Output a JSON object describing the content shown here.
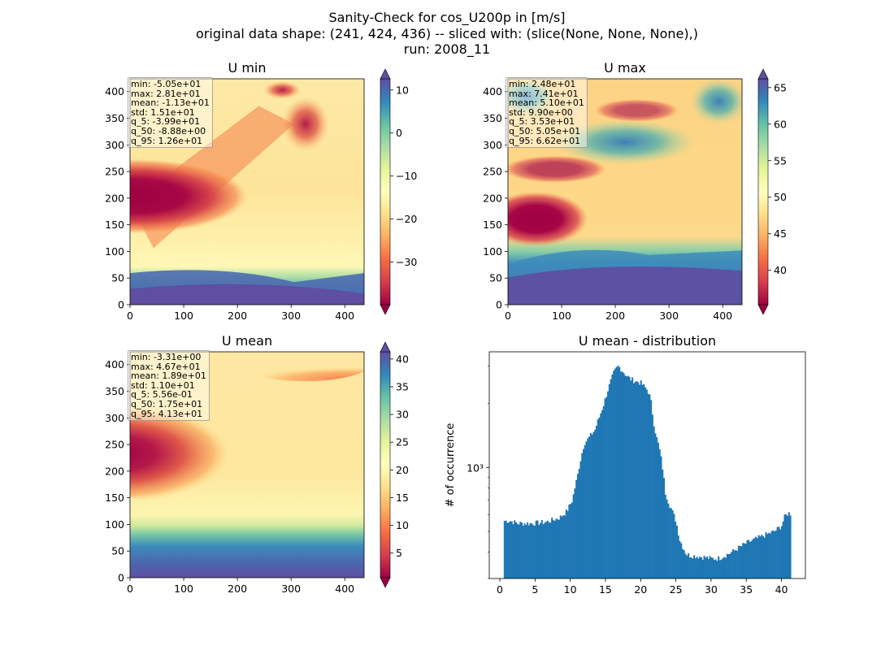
{
  "figure": {
    "title_lines": [
      "Sanity-Check for cos_U200p in [m/s]",
      "original data shape: (241, 424, 436) -- sliced with: (slice(None, None, None),)",
      "run: 2008_11"
    ]
  },
  "chart_data": [
    {
      "type": "heatmap",
      "title": "U min",
      "colormap": "Spectral",
      "x_ticks": [
        0,
        100,
        200,
        300,
        400
      ],
      "y_ticks": [
        0,
        50,
        100,
        150,
        200,
        250,
        300,
        350,
        400
      ],
      "xlim": [
        0,
        436
      ],
      "ylim": [
        0,
        424
      ],
      "colorbar_ticks": [
        10,
        0,
        -10,
        -20,
        -30
      ],
      "colorbar_labels": [
        "10",
        "0",
        "−10",
        "−20",
        "−30"
      ],
      "clim": [
        -39.9,
        12.6
      ],
      "stats": [
        "min: -5.05e+01",
        "max: 2.81e+01",
        "mean: -1.13e+01",
        "std: 1.51e+01",
        "q_5: -3.99e+01",
        "q_50: -8.88e+00",
        "q_95: 1.26e+01"
      ]
    },
    {
      "type": "heatmap",
      "title": "U max",
      "colormap": "Spectral",
      "x_ticks": [
        0,
        100,
        200,
        300,
        400
      ],
      "y_ticks": [
        0,
        50,
        100,
        150,
        200,
        250,
        300,
        350,
        400
      ],
      "xlim": [
        0,
        436
      ],
      "ylim": [
        0,
        424
      ],
      "colorbar_ticks": [
        65,
        60,
        55,
        50,
        45,
        40
      ],
      "colorbar_labels": [
        "65",
        "60",
        "55",
        "50",
        "45",
        "40"
      ],
      "clim": [
        35.3,
        66.2
      ],
      "stats": [
        "min: 2.48e+01",
        "max: 7.41e+01",
        "mean: 5.10e+01",
        "std: 9.90e+00",
        "q_5: 3.53e+01",
        "q_50: 5.05e+01",
        "q_95: 6.62e+01"
      ]
    },
    {
      "type": "heatmap",
      "title": "U mean",
      "colormap": "Spectral",
      "x_ticks": [
        0,
        100,
        200,
        300,
        400
      ],
      "y_ticks": [
        0,
        50,
        100,
        150,
        200,
        250,
        300,
        350,
        400
      ],
      "xlim": [
        0,
        436
      ],
      "ylim": [
        0,
        424
      ],
      "colorbar_ticks": [
        40,
        35,
        30,
        25,
        20,
        15,
        10,
        5
      ],
      "colorbar_labels": [
        "40",
        "35",
        "30",
        "25",
        "20",
        "15",
        "10",
        "5"
      ],
      "clim": [
        0.556,
        41.3
      ],
      "stats": [
        "min: -3.31e+00",
        "max: 4.67e+01",
        "mean: 1.89e+01",
        "std: 1.10e+01",
        "q_5: 5.56e-01",
        "q_50: 1.75e+01",
        "q_95: 4.13e+01"
      ]
    },
    {
      "type": "bar",
      "title": "U mean - distribution",
      "ylabel": "# of occurrence",
      "yscale": "log",
      "bar_color": "#1f77b4",
      "x_ticks": [
        0,
        5,
        10,
        15,
        20,
        25,
        30,
        35,
        40
      ],
      "xlim": [
        -1.5,
        43.4
      ],
      "ylim": [
        300,
        3500
      ],
      "y_tick_label": "10³",
      "bin_width": 0.204,
      "bin_start": 0.556,
      "key_points": [
        [
          0.56,
          560
        ],
        [
          1.5,
          560
        ],
        [
          2.5,
          545
        ],
        [
          3.5,
          545
        ],
        [
          4.5,
          545
        ],
        [
          5.5,
          548
        ],
        [
          6.5,
          552
        ],
        [
          7.5,
          565
        ],
        [
          8.5,
          580
        ],
        [
          9.5,
          620
        ],
        [
          10.3,
          700
        ],
        [
          11.0,
          900
        ],
        [
          11.5,
          1100
        ],
        [
          12.0,
          1300
        ],
        [
          12.6,
          1370
        ],
        [
          13.5,
          1500
        ],
        [
          14.2,
          1750
        ],
        [
          14.8,
          2000
        ],
        [
          15.5,
          2400
        ],
        [
          16.2,
          2800
        ],
        [
          16.8,
          3000
        ],
        [
          17.4,
          2850
        ],
        [
          18.0,
          2700
        ],
        [
          18.6,
          2600
        ],
        [
          19.2,
          2550
        ],
        [
          20.0,
          2500
        ],
        [
          20.5,
          2400
        ],
        [
          21.0,
          2300
        ],
        [
          21.4,
          2100
        ],
        [
          21.8,
          1650
        ],
        [
          22.2,
          1400
        ],
        [
          22.6,
          1250
        ],
        [
          23.0,
          1050
        ],
        [
          23.5,
          760
        ],
        [
          24.0,
          680
        ],
        [
          24.5,
          620
        ],
        [
          25.0,
          560
        ],
        [
          25.5,
          460
        ],
        [
          26.0,
          420
        ],
        [
          26.5,
          390
        ],
        [
          27.0,
          385
        ],
        [
          28.0,
          382
        ],
        [
          29.0,
          378
        ],
        [
          30.0,
          372
        ],
        [
          31.0,
          372
        ],
        [
          32.0,
          385
        ],
        [
          33.0,
          400
        ],
        [
          34.0,
          420
        ],
        [
          35.0,
          440
        ],
        [
          36.0,
          455
        ],
        [
          37.0,
          470
        ],
        [
          38.0,
          485
        ],
        [
          39.0,
          500
        ],
        [
          40.0,
          530
        ],
        [
          40.5,
          590
        ],
        [
          41.0,
          610
        ],
        [
          41.3,
          605
        ]
      ]
    }
  ]
}
